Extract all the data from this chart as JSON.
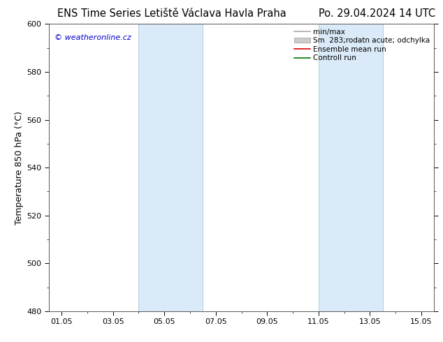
{
  "title": "ENS Time Series Letiště Václava Havla Praha",
  "title_right": "Po. 29.04.2024 14 UTC",
  "ylabel": "Temperature 850 hPa (°C)",
  "watermark": "© weatheronline.cz",
  "watermark_color": "#0000cc",
  "ylim": [
    480,
    600
  ],
  "yticks": [
    480,
    500,
    520,
    540,
    560,
    580,
    600
  ],
  "xtick_labels": [
    "01.05",
    "03.05",
    "05.05",
    "07.05",
    "09.05",
    "11.05",
    "13.05",
    "15.05"
  ],
  "xtick_positions": [
    0,
    2,
    4,
    6,
    8,
    10,
    12,
    14
  ],
  "xlim": [
    -0.5,
    14.5
  ],
  "shade_regions": [
    {
      "x_start": 3.0,
      "x_end": 5.5
    },
    {
      "x_start": 10.0,
      "x_end": 12.5
    }
  ],
  "shade_color": "#daeaf8",
  "shade_edge_color": "#b0ccdf",
  "bg_color": "#ffffff",
  "plot_bg_color": "#ffffff",
  "border_color": "#555555",
  "legend_items": [
    {
      "label": "min/max",
      "color": "#aaaaaa",
      "lw": 1.5,
      "type": "line"
    },
    {
      "label": "Sm  283;rodatn acute; odchylka",
      "color": "#cccccc",
      "lw": 6,
      "type": "fill"
    },
    {
      "label": "Ensemble mean run",
      "color": "#dd0000",
      "lw": 1.5,
      "type": "line"
    },
    {
      "label": "Controll run",
      "color": "#007700",
      "lw": 1.5,
      "type": "line"
    }
  ],
  "title_fontsize": 10.5,
  "label_fontsize": 9,
  "tick_fontsize": 8,
  "legend_fontsize": 7.5,
  "figsize": [
    6.34,
    4.9
  ],
  "dpi": 100
}
